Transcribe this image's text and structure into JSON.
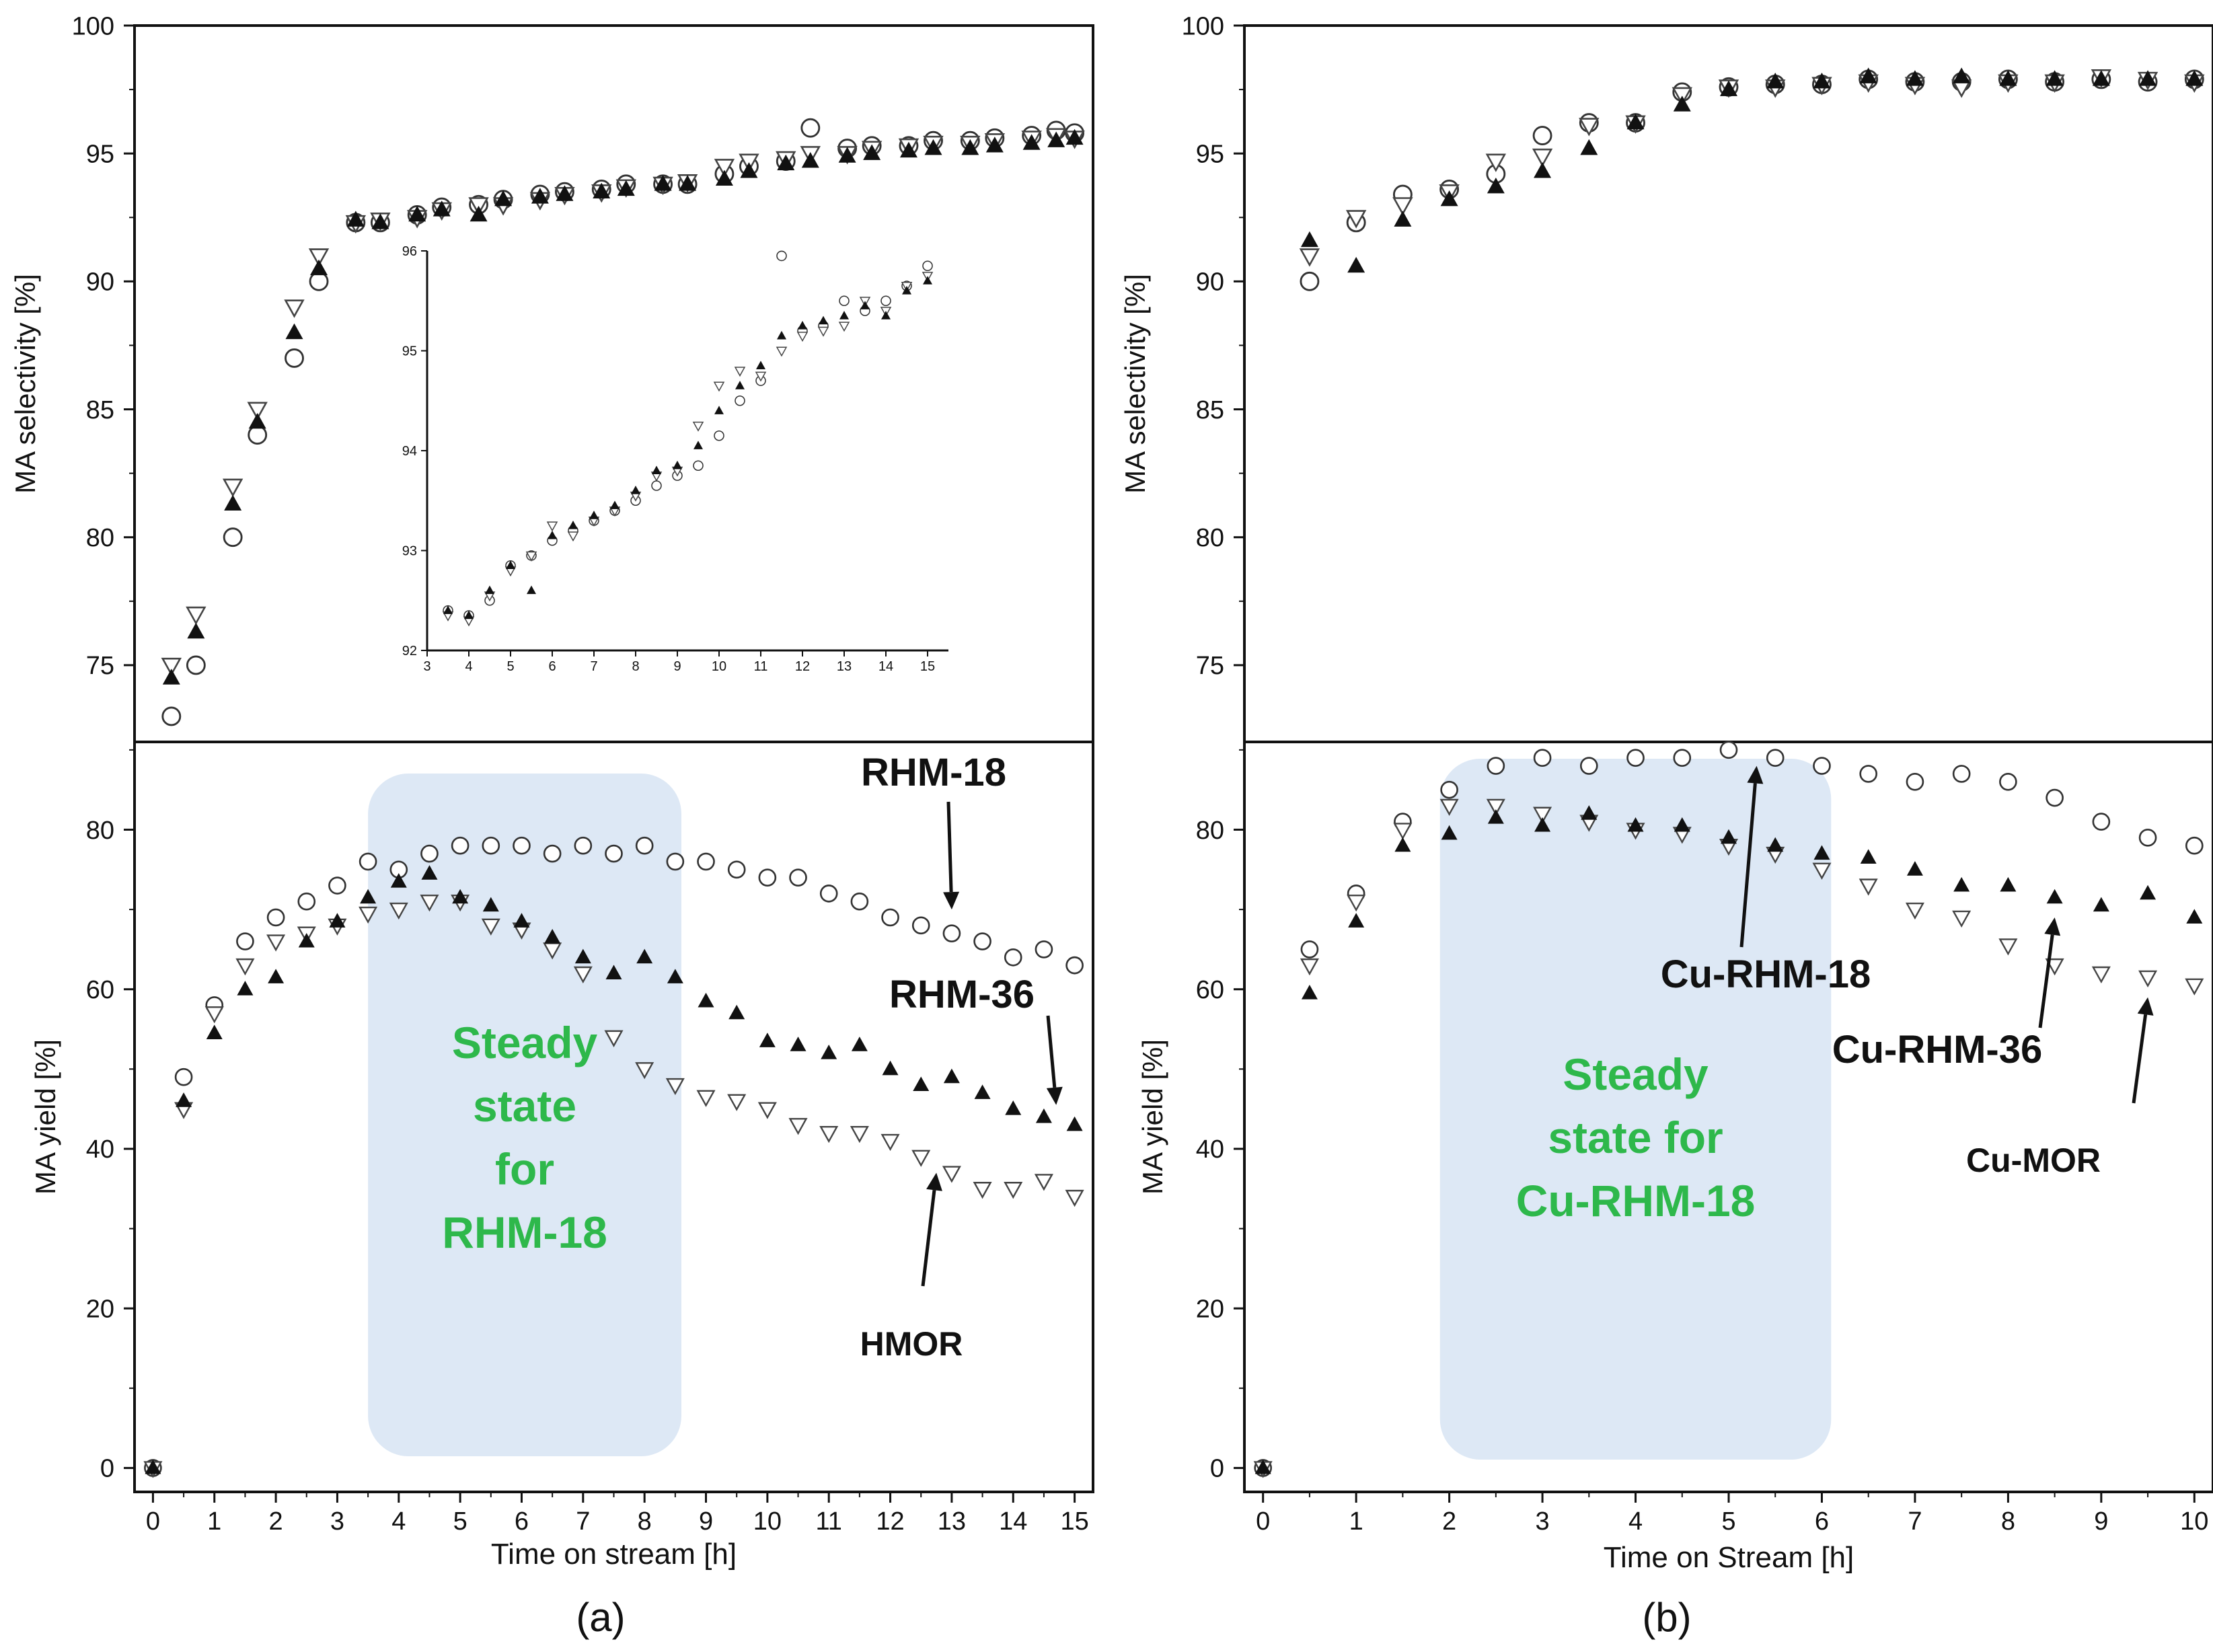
{
  "figure": {
    "panel_a_label": "(a)",
    "panel_b_label": "(b)"
  },
  "chart_data": [
    {
      "id": "a_sel",
      "type": "scatter",
      "panel": "a",
      "ylabel": "MA selectivity [%]",
      "xlim": [
        -0.3,
        15.3
      ],
      "ylim": [
        72,
        100
      ],
      "yticks": [
        75,
        80,
        85,
        90,
        95,
        100
      ],
      "series": [
        {
          "name": "RHM-18",
          "marker": "circle-open",
          "x": [
            0.3,
            0.7,
            1.3,
            1.7,
            2.3,
            2.7,
            3.3,
            3.7,
            4.3,
            4.7,
            5.3,
            5.7,
            6.3,
            6.7,
            7.3,
            7.7,
            8.3,
            8.7,
            9.3,
            9.7,
            10.3,
            10.7,
            11.3,
            11.7,
            12.3,
            12.7,
            13.3,
            13.7,
            14.3,
            14.7,
            15.0
          ],
          "y": [
            73.0,
            75.0,
            80.0,
            84.0,
            87.0,
            90.0,
            92.3,
            92.3,
            92.6,
            92.9,
            93.0,
            93.2,
            93.4,
            93.5,
            93.6,
            93.8,
            93.8,
            93.8,
            94.2,
            94.5,
            94.7,
            96.0,
            95.2,
            95.3,
            95.3,
            95.5,
            95.5,
            95.6,
            95.7,
            95.9,
            95.8
          ]
        },
        {
          "name": "RHM-36",
          "marker": "triangle-filled",
          "x": [
            0.3,
            0.7,
            1.3,
            1.7,
            2.3,
            2.7,
            3.3,
            3.7,
            4.3,
            4.7,
            5.3,
            5.7,
            6.3,
            6.7,
            7.3,
            7.7,
            8.3,
            8.7,
            9.3,
            9.7,
            10.3,
            10.7,
            11.3,
            11.7,
            12.3,
            12.7,
            13.3,
            13.7,
            14.3,
            14.7,
            15.0
          ],
          "y": [
            74.5,
            76.3,
            81.3,
            84.5,
            88.0,
            90.5,
            92.4,
            92.3,
            92.6,
            92.8,
            92.6,
            93.2,
            93.3,
            93.4,
            93.5,
            93.6,
            93.8,
            93.8,
            94.0,
            94.3,
            94.6,
            94.7,
            94.9,
            95.0,
            95.1,
            95.2,
            95.2,
            95.3,
            95.4,
            95.5,
            95.6
          ]
        },
        {
          "name": "HMOR",
          "marker": "triangle-down-open",
          "x": [
            0.3,
            0.7,
            1.3,
            1.7,
            2.3,
            2.7,
            3.3,
            3.7,
            4.3,
            4.7,
            5.3,
            5.7,
            6.3,
            6.7,
            7.3,
            7.7,
            8.3,
            8.7,
            9.3,
            9.7,
            10.3,
            10.7,
            11.3,
            11.7,
            12.3,
            12.7,
            13.3,
            13.7,
            14.3,
            14.7,
            15.0
          ],
          "y": [
            75.0,
            77.0,
            82.0,
            85.0,
            89.0,
            91.0,
            92.3,
            92.4,
            92.5,
            92.8,
            93.0,
            93.0,
            93.2,
            93.4,
            93.5,
            93.7,
            93.8,
            93.9,
            94.5,
            94.7,
            94.8,
            95.0,
            95.0,
            95.2,
            95.3,
            95.4,
            95.4,
            95.5,
            95.6,
            95.7,
            95.6
          ]
        }
      ]
    },
    {
      "id": "a_inset",
      "type": "scatter",
      "panel": "a-inset",
      "xlim": [
        3,
        15.5
      ],
      "ylim": [
        92,
        96
      ],
      "xticks": [
        3,
        4,
        5,
        6,
        7,
        8,
        9,
        10,
        11,
        12,
        13,
        14,
        15
      ],
      "yticks": [
        92,
        93,
        94,
        95,
        96
      ],
      "series": [
        {
          "name": "RHM-18",
          "marker": "circle-open",
          "x": [
            3.5,
            4,
            4.5,
            5,
            5.5,
            6,
            6.5,
            7,
            7.5,
            8,
            8.5,
            9,
            9.5,
            10,
            10.5,
            11,
            11.5,
            12,
            12.5,
            13,
            13.5,
            14,
            14.5,
            15
          ],
          "y": [
            92.4,
            92.35,
            92.5,
            92.85,
            92.95,
            93.1,
            93.2,
            93.3,
            93.4,
            93.5,
            93.65,
            93.75,
            93.85,
            94.15,
            94.5,
            94.7,
            95.95,
            95.2,
            95.25,
            95.5,
            95.4,
            95.5,
            95.65,
            95.85
          ]
        },
        {
          "name": "RHM-36",
          "marker": "triangle-filled",
          "x": [
            3.5,
            4,
            4.5,
            5,
            5.5,
            6,
            6.5,
            7,
            7.5,
            8,
            8.5,
            9,
            9.5,
            10,
            10.5,
            11,
            11.5,
            12,
            12.5,
            13,
            13.5,
            14,
            14.5,
            15
          ],
          "y": [
            92.4,
            92.35,
            92.6,
            92.85,
            92.6,
            93.15,
            93.25,
            93.35,
            93.45,
            93.6,
            93.8,
            93.85,
            94.05,
            94.4,
            94.65,
            94.85,
            95.15,
            95.25,
            95.3,
            95.35,
            95.45,
            95.35,
            95.6,
            95.7
          ]
        },
        {
          "name": "HMOR",
          "marker": "triangle-down-open",
          "x": [
            3.5,
            4,
            4.5,
            5,
            5.5,
            6,
            6.5,
            7,
            7.5,
            8,
            8.5,
            9,
            9.5,
            10,
            10.5,
            11,
            11.5,
            12,
            12.5,
            13,
            13.5,
            14,
            14.5,
            15
          ],
          "y": [
            92.35,
            92.3,
            92.55,
            92.8,
            92.95,
            93.25,
            93.15,
            93.3,
            93.4,
            93.55,
            93.75,
            93.8,
            94.25,
            94.65,
            94.8,
            94.75,
            95.0,
            95.15,
            95.2,
            95.25,
            95.5,
            95.4,
            95.65,
            95.75
          ]
        }
      ]
    },
    {
      "id": "a_yield",
      "type": "scatter",
      "panel": "a",
      "xlabel": "Time on stream [h]",
      "ylabel": "MA yield [%]",
      "xlim": [
        -0.3,
        15.3
      ],
      "ylim": [
        -3,
        91
      ],
      "xticks": [
        0,
        1,
        2,
        3,
        4,
        5,
        6,
        7,
        8,
        9,
        10,
        11,
        12,
        13,
        14,
        15
      ],
      "yticks": [
        0,
        20,
        40,
        60,
        80
      ],
      "series": [
        {
          "name": "RHM-18",
          "marker": "circle-open",
          "x": [
            0,
            0.5,
            1,
            1.5,
            2,
            2.5,
            3,
            3.5,
            4,
            4.5,
            5,
            5.5,
            6,
            6.5,
            7,
            7.5,
            8,
            8.5,
            9,
            9.5,
            10,
            10.5,
            11,
            11.5,
            12,
            12.5,
            13,
            13.5,
            14,
            14.5,
            15
          ],
          "y": [
            0,
            49,
            58,
            66,
            69,
            71,
            73,
            76,
            75,
            77,
            78,
            78,
            78,
            77,
            78,
            77,
            78,
            76,
            76,
            75,
            74,
            74,
            72,
            71,
            69,
            68,
            67,
            66,
            64,
            65,
            63
          ]
        },
        {
          "name": "RHM-36",
          "marker": "triangle-filled",
          "x": [
            0,
            0.5,
            1,
            1.5,
            2,
            2.5,
            3,
            3.5,
            4,
            4.5,
            5,
            5.5,
            6,
            6.5,
            7,
            7.5,
            8,
            8.5,
            9,
            9.5,
            10,
            10.5,
            11,
            11.5,
            12,
            12.5,
            13,
            13.5,
            14,
            14.5,
            15
          ],
          "y": [
            0,
            46,
            54.5,
            60,
            61.5,
            66,
            68.5,
            71.5,
            73.5,
            74.5,
            71.5,
            70.5,
            68.5,
            66.5,
            64,
            62,
            64,
            61.5,
            58.5,
            57,
            53.5,
            53,
            52,
            53,
            50,
            48,
            49,
            47,
            45,
            44,
            43
          ]
        },
        {
          "name": "HMOR",
          "marker": "triangle-down-open",
          "x": [
            0,
            0.5,
            1,
            1.5,
            2,
            2.5,
            3,
            3.5,
            4,
            4.5,
            5,
            5.5,
            6,
            6.5,
            7,
            7.5,
            8,
            8.5,
            9,
            9.5,
            10,
            10.5,
            11,
            11.5,
            12,
            12.5,
            13,
            13.5,
            14,
            14.5,
            15
          ],
          "y": [
            0,
            45,
            57,
            63,
            66,
            67,
            68,
            69.5,
            70,
            71,
            71,
            68,
            67.5,
            65,
            62,
            54,
            50,
            48,
            46.5,
            46,
            45,
            43,
            42,
            42,
            41,
            39,
            37,
            35,
            35,
            36,
            34
          ]
        }
      ],
      "annotations": [
        {
          "text": "RHM-18",
          "arrow_to": {
            "x": 13.0,
            "y": 70
          }
        },
        {
          "text": "RHM-36",
          "arrow_to": {
            "x": 14.7,
            "y": 45.5
          }
        },
        {
          "text": "HMOR",
          "arrow_to": {
            "x": 12.75,
            "y": 37
          }
        }
      ],
      "shaded_region": {
        "x": [
          3.5,
          8.6
        ],
        "label": [
          "Steady",
          "state",
          "for",
          "RHM-18"
        ],
        "color": "#dde8f5",
        "label_color": "#2eb84b"
      }
    },
    {
      "id": "b_sel",
      "type": "scatter",
      "panel": "b",
      "ylabel": "MA selectivity [%]",
      "xlim": [
        -0.2,
        10.2
      ],
      "ylim": [
        72,
        100
      ],
      "yticks": [
        75,
        80,
        85,
        90,
        95,
        100
      ],
      "series": [
        {
          "name": "Cu-RHM-18",
          "marker": "circle-open",
          "x": [
            0.5,
            1,
            1.5,
            2,
            2.5,
            3,
            3.5,
            4,
            4.5,
            5,
            5.5,
            6,
            6.5,
            7,
            7.5,
            8,
            8.5,
            9,
            9.5,
            10
          ],
          "y": [
            90.0,
            92.3,
            93.4,
            93.6,
            94.2,
            95.7,
            96.2,
            96.2,
            97.4,
            97.6,
            97.7,
            97.7,
            97.9,
            97.8,
            97.8,
            97.9,
            97.8,
            97.9,
            97.8,
            97.9
          ]
        },
        {
          "name": "Cu-RHM-36",
          "marker": "triangle-filled",
          "x": [
            0.5,
            1,
            1.5,
            2,
            2.5,
            3,
            3.5,
            4,
            4.5,
            5,
            5.5,
            6,
            6.5,
            7,
            7.5,
            8,
            8.5,
            9,
            9.5,
            10
          ],
          "y": [
            91.6,
            90.6,
            92.4,
            93.2,
            93.7,
            94.3,
            95.2,
            96.2,
            96.9,
            97.5,
            97.8,
            97.8,
            98.0,
            97.9,
            98.0,
            97.9,
            97.9,
            97.9,
            97.9,
            97.9
          ]
        },
        {
          "name": "Cu-MOR",
          "marker": "triangle-down-open",
          "x": [
            0.5,
            1,
            1.5,
            2,
            2.5,
            3,
            3.5,
            4,
            4.5,
            5,
            5.5,
            6,
            6.5,
            7,
            7.5,
            8,
            8.5,
            9,
            9.5,
            10
          ],
          "y": [
            91.0,
            92.5,
            93.0,
            93.5,
            94.7,
            94.9,
            96.1,
            96.2,
            97.3,
            97.6,
            97.6,
            97.7,
            97.8,
            97.7,
            97.6,
            97.8,
            97.8,
            98.0,
            97.9,
            97.8
          ]
        }
      ]
    },
    {
      "id": "b_yield",
      "type": "scatter",
      "panel": "b",
      "xlabel": "Time on Stream [h]",
      "ylabel": "MA yield [%]",
      "xlim": [
        -0.2,
        10.2
      ],
      "ylim": [
        -3,
        91
      ],
      "xticks": [
        0,
        1,
        2,
        3,
        4,
        5,
        6,
        7,
        8,
        9,
        10
      ],
      "yticks": [
        0,
        20,
        40,
        60,
        80
      ],
      "series": [
        {
          "name": "Cu-RHM-18",
          "marker": "circle-open",
          "x": [
            0,
            0.5,
            1,
            1.5,
            2,
            2.5,
            3,
            3.5,
            4,
            4.5,
            5,
            5.5,
            6,
            6.5,
            7,
            7.5,
            8,
            8.5,
            9,
            9.5,
            10
          ],
          "y": [
            0,
            65,
            72,
            81,
            85,
            88,
            89,
            88,
            89,
            89,
            90,
            89,
            88,
            87,
            86,
            87,
            86,
            84,
            81,
            79,
            78
          ]
        },
        {
          "name": "Cu-RHM-36",
          "marker": "triangle-filled",
          "x": [
            0,
            0.5,
            1,
            1.5,
            2,
            2.5,
            3,
            3.5,
            4,
            4.5,
            5,
            5.5,
            6,
            6.5,
            7,
            7.5,
            8,
            8.5,
            9,
            9.5,
            10
          ],
          "y": [
            0,
            59.5,
            68.5,
            78,
            79.5,
            81.5,
            80.5,
            82,
            80.5,
            80.5,
            79,
            78,
            77,
            76.5,
            75,
            73,
            73,
            71.5,
            70.5,
            72,
            69
          ]
        },
        {
          "name": "Cu-MOR",
          "marker": "triangle-down-open",
          "x": [
            0,
            0.5,
            1,
            1.5,
            2,
            2.5,
            3,
            3.5,
            4,
            4.5,
            5,
            5.5,
            6,
            6.5,
            7,
            7.5,
            8,
            8.5,
            9,
            9.5,
            10
          ],
          "y": [
            0,
            63,
            71,
            80,
            83,
            83,
            82,
            81,
            80,
            79.5,
            78,
            77,
            75,
            73,
            70,
            69,
            65.5,
            63,
            62,
            61.5,
            60.5
          ]
        }
      ],
      "annotations": [
        {
          "text": "Cu-RHM-18",
          "arrow_to": {
            "x": 5.3,
            "y": 88
          }
        },
        {
          "text": "Cu-RHM-36",
          "arrow_to": {
            "x": 8.5,
            "y": 69
          }
        },
        {
          "text": "Cu-MOR",
          "arrow_to": {
            "x": 9.5,
            "y": 59
          }
        }
      ],
      "shaded_region": {
        "x": [
          1.9,
          6.1
        ],
        "label": [
          "Steady",
          "state for",
          "Cu-RHM-18"
        ],
        "color": "#dde8f5",
        "label_color": "#2eb84b"
      }
    }
  ]
}
